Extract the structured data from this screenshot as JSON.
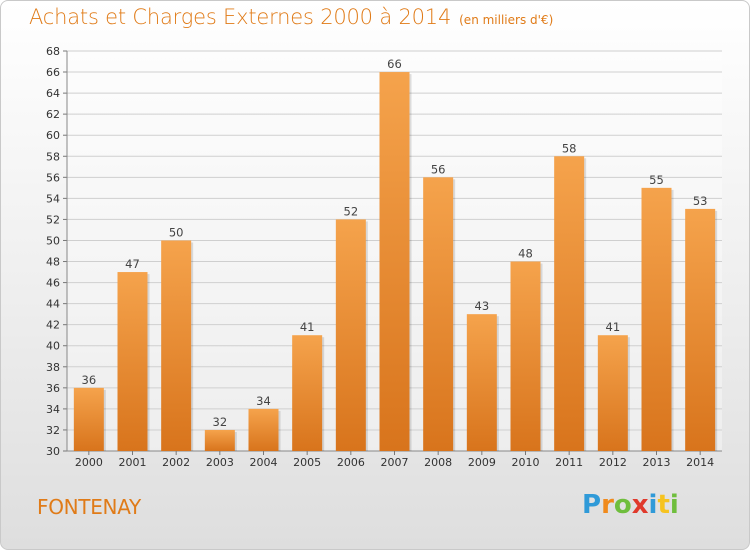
{
  "chart_data": {
    "type": "bar",
    "title": "Achats et Charges Externes 2000 à 2014",
    "subtitle": "(en milliers d'€)",
    "categories": [
      "2000",
      "2001",
      "2002",
      "2003",
      "2004",
      "2005",
      "2006",
      "2007",
      "2008",
      "2009",
      "2010",
      "2011",
      "2012",
      "2013",
      "2014"
    ],
    "values": [
      36,
      47,
      50,
      32,
      34,
      41,
      52,
      66,
      56,
      43,
      48,
      58,
      41,
      55,
      53
    ],
    "ylim": [
      30,
      68
    ],
    "ytick_step": 2,
    "grid": true,
    "bar_color_top": "#f5a34c",
    "bar_color_bottom": "#d8741c"
  },
  "place_name": "FONTENAY",
  "brand": {
    "letters": [
      "P",
      "r",
      "o",
      "x",
      "i",
      "t",
      "i"
    ],
    "colors": [
      "#2f9ad8",
      "#f08a1c",
      "#6fbe3d",
      "#e03a2c",
      "#2f9ad8",
      "#f6c31f",
      "#6fbe3d"
    ]
  }
}
